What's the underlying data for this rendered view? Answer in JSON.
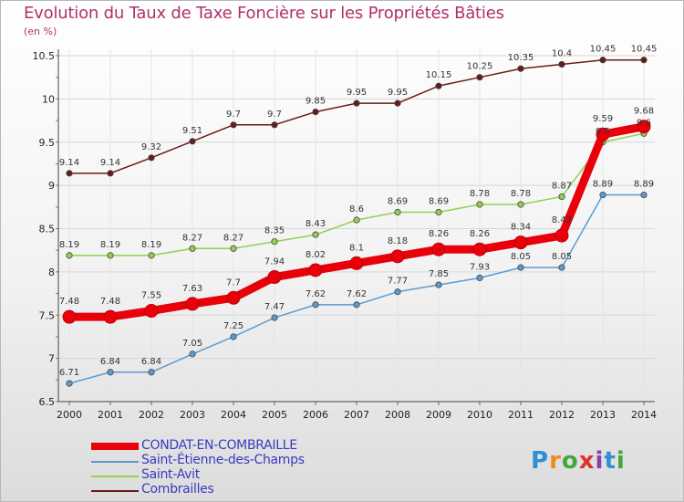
{
  "chart_data": {
    "type": "line",
    "title": "Evolution du Taux de Taxe Foncière sur les Propriétés Bâties",
    "subtitle": "(en %)",
    "x": [
      "2000",
      "2001",
      "2002",
      "2003",
      "2004",
      "2005",
      "2006",
      "2007",
      "2008",
      "2009",
      "2010",
      "2011",
      "2012",
      "2013",
      "2014"
    ],
    "ylim": [
      6.5,
      10.5
    ],
    "yticks": [
      "6.5",
      "7",
      "7.5",
      "8",
      "8.5",
      "9",
      "9.5",
      "10",
      "10.5"
    ],
    "series": [
      {
        "name": "Combrailles",
        "color": "#6b1a1a",
        "values": [
          9.14,
          9.14,
          9.32,
          9.51,
          9.7,
          9.7,
          9.85,
          9.95,
          9.95,
          10.15,
          10.25,
          10.35,
          10.4,
          10.45,
          10.45
        ],
        "labels": [
          "9.14",
          "9.14",
          "9.32",
          "9.51",
          "9.7",
          "9.7",
          "9.85",
          "9.95",
          "9.95",
          "10.15",
          "10.25",
          "10.35",
          "10.4",
          "10.45",
          "10.45"
        ]
      },
      {
        "name": "Saint-Avit",
        "color": "#8fd14f",
        "values": [
          8.19,
          8.19,
          8.19,
          8.27,
          8.27,
          8.35,
          8.43,
          8.6,
          8.69,
          8.69,
          8.78,
          8.78,
          8.87,
          9.5,
          9.6
        ],
        "labels": [
          "8.19",
          "8.19",
          "8.19",
          "8.27",
          "8.27",
          "8.35",
          "8.43",
          "8.6",
          "8.69",
          "8.69",
          "8.78",
          "8.78",
          "8.87",
          "9.5",
          "9.6"
        ]
      },
      {
        "name": "Saint-Étienne-des-Champs",
        "color": "#5c9bd1",
        "values": [
          6.71,
          6.84,
          6.84,
          7.05,
          7.25,
          7.47,
          7.62,
          7.62,
          7.77,
          7.85,
          7.93,
          8.05,
          8.05,
          8.89,
          8.89
        ],
        "labels": [
          "6.71",
          "6.84",
          "6.84",
          "7.05",
          "7.25",
          "7.47",
          "7.62",
          "7.62",
          "7.77",
          "7.85",
          "7.93",
          "8.05",
          "8.05",
          "8.89",
          "8.89"
        ]
      },
      {
        "name": "CONDAT-EN-COMBRAILLE",
        "color": "#e8000a",
        "values": [
          7.48,
          7.48,
          7.55,
          7.63,
          7.7,
          7.94,
          8.02,
          8.1,
          8.18,
          8.26,
          8.26,
          8.34,
          8.42,
          9.59,
          9.68
        ],
        "labels": [
          "7.48",
          "7.48",
          "7.55",
          "7.63",
          "7.7",
          "7.94",
          "8.02",
          "8.1",
          "8.18",
          "8.26",
          "8.26",
          "8.34",
          "8.42",
          "9.59",
          "9.68"
        ]
      }
    ],
    "legend": [
      "CONDAT-EN-COMBRAILLE",
      "Saint-Étienne-des-Champs",
      "Saint-Avit",
      "Combrailles"
    ],
    "legend_colors": [
      "#e8000a",
      "#5c9bd1",
      "#8fd14f",
      "#6b1a1a"
    ],
    "legend_position": "bottom-left"
  },
  "logo": {
    "letters": [
      "P",
      "r",
      "o",
      "x",
      "i",
      "t",
      "i"
    ],
    "text": "Proxiti"
  }
}
